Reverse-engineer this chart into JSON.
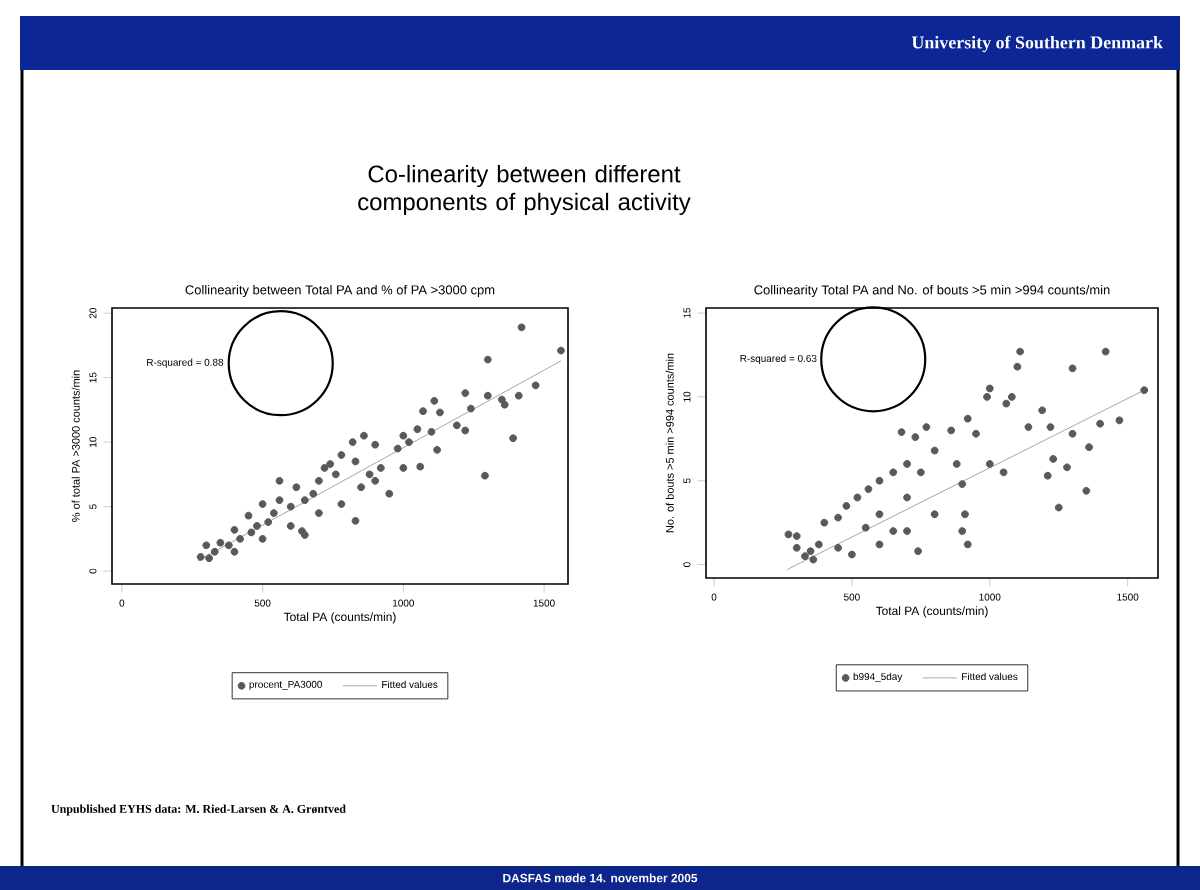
{
  "chart_data": [
    {
      "type": "scatter",
      "title": "Collinearity between Total PA and % of PA >3000 cpm",
      "xlabel": "Total PA (counts/min)",
      "ylabel": "% of total PA >3000 counts/min",
      "xlim": [
        -35,
        1585
      ],
      "ylim": [
        -1,
        20.4
      ],
      "xticks": [
        0,
        500,
        1000,
        1500
      ],
      "yticks": [
        0,
        5,
        10,
        15,
        20
      ],
      "legend": "bottom",
      "grid": false,
      "annotations": [
        "R-squared = 0.88",
        "University of Southern Denmark",
        "Co-linearity between different components of physical activity",
        "Unpublished EYHS data: M. Ried-Larsen & A. Grøntved",
        "DASFAS møde 14. november 2005"
      ],
      "series": [
        {
          "name": "procent_PA3000",
          "type": "scatter",
          "marker": "circle",
          "color": "#595959",
          "x": [
            1420,
            1560,
            1300,
            1470,
            1410,
            1350,
            1360,
            1300,
            1220,
            1240,
            1110,
            1130,
            1070,
            1190,
            1220,
            1390,
            1290,
            1060,
            1120,
            1020,
            980,
            1000,
            1050,
            900,
            860,
            820,
            920,
            880,
            850,
            830,
            780,
            760,
            720,
            700,
            680,
            650,
            620,
            600,
            560,
            540,
            520,
            500,
            480,
            460,
            450,
            420,
            400,
            380,
            350,
            330,
            300,
            280,
            310,
            400,
            500,
            600,
            700,
            780,
            900,
            950,
            640,
            560,
            830,
            650,
            1000,
            1100,
            740
          ],
          "values": [
            18.9,
            17.1,
            16.4,
            14.4,
            13.6,
            13.3,
            12.9,
            13.6,
            13.8,
            12.6,
            13.2,
            12.3,
            12.4,
            11.3,
            10.9,
            10.3,
            7.4,
            8.1,
            9.4,
            10.0,
            9.5,
            10.5,
            11.0,
            9.8,
            10.5,
            10.0,
            8.0,
            7.5,
            6.5,
            8.5,
            9.0,
            7.5,
            8.0,
            7.0,
            6.0,
            5.5,
            6.5,
            5.0,
            5.5,
            4.5,
            3.8,
            5.2,
            3.5,
            3.0,
            4.3,
            2.5,
            3.2,
            2.0,
            2.2,
            1.5,
            2.0,
            1.1,
            1.0,
            1.5,
            2.5,
            3.5,
            4.5,
            5.2,
            7.0,
            6.0,
            3.1,
            7.0,
            3.9,
            2.8,
            8.0,
            10.8,
            8.3
          ]
        },
        {
          "name": "Fitted values",
          "type": "line",
          "marker": "none",
          "color": "#a6a6a6",
          "x": [
            270,
            1560
          ],
          "values": [
            0.8,
            16.3
          ]
        }
      ]
    },
    {
      "type": "scatter",
      "title": "Collinearity Total PA and No. of bouts >5 min >994 counts/min",
      "xlabel": "Total PA (counts/min)",
      "ylabel": "No. of bouts >5 min >994 counts/min",
      "xlim": [
        -29,
        1610
      ],
      "ylim": [
        -0.8,
        15.3
      ],
      "xticks": [
        0,
        500,
        1000,
        1500
      ],
      "yticks": [
        0,
        5,
        10,
        15
      ],
      "legend": "bottom",
      "grid": false,
      "annotations": [
        "R-squared = 0.63"
      ],
      "series": [
        {
          "name": "b994_5day",
          "type": "scatter",
          "marker": "circle",
          "color": "#595959",
          "x": [
            1110,
            1420,
            1100,
            1300,
            1560,
            1000,
            990,
            1080,
            1060,
            1190,
            1470,
            1400,
            1140,
            1300,
            1220,
            1360,
            1230,
            1280,
            1210,
            1350,
            1250,
            920,
            950,
            860,
            770,
            730,
            680,
            800,
            880,
            900,
            910,
            920,
            740,
            700,
            650,
            600,
            560,
            520,
            480,
            450,
            400,
            380,
            350,
            300,
            270,
            300,
            330,
            360,
            450,
            500,
            600,
            700,
            800,
            600,
            650,
            550,
            1000,
            1050,
            900,
            700,
            750
          ],
          "values": [
            12.7,
            12.7,
            11.8,
            11.7,
            10.4,
            10.5,
            10.0,
            10.0,
            9.6,
            9.2,
            8.6,
            8.4,
            8.2,
            7.8,
            8.2,
            7.0,
            6.3,
            5.8,
            5.3,
            4.4,
            3.4,
            8.7,
            7.8,
            8.0,
            8.2,
            7.6,
            7.9,
            6.8,
            6.0,
            4.8,
            3.0,
            1.2,
            0.8,
            6.0,
            5.5,
            5.0,
            4.5,
            4.0,
            3.5,
            2.8,
            2.5,
            1.2,
            0.8,
            1.7,
            1.8,
            1.0,
            0.5,
            0.3,
            1.0,
            0.6,
            1.2,
            2.0,
            3.0,
            3.0,
            2.0,
            2.2,
            6.0,
            5.5,
            2.0,
            4.0,
            5.5
          ]
        },
        {
          "name": "Fitted values",
          "type": "line",
          "marker": "none",
          "color": "#a6a6a6",
          "x": [
            265,
            1560
          ],
          "values": [
            -0.3,
            10.4
          ]
        }
      ]
    }
  ]
}
